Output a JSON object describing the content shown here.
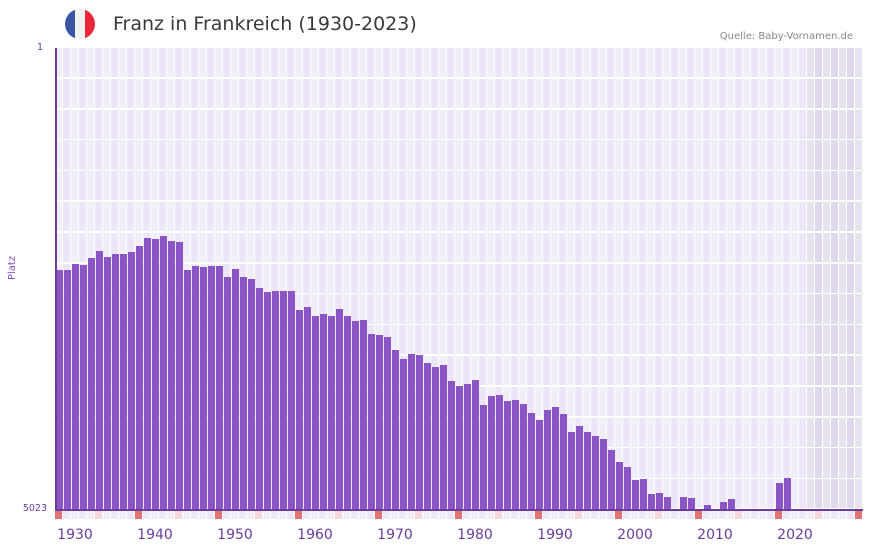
{
  "header": {
    "title": "Franz in Frankreich (1930-2023)",
    "source": "Quelle: Baby-Vornamen.de",
    "flag_colors": [
      "#3a55a4",
      "#f2f2f2",
      "#e8283a"
    ]
  },
  "axis": {
    "y_top_label": "1",
    "y_bottom_label": "5023",
    "y_title": "Platz",
    "x_labels": [
      "1930",
      "1940",
      "1950",
      "1960",
      "1970",
      "1980",
      "1990",
      "2000",
      "2010",
      "2020"
    ]
  },
  "colors": {
    "bar": "#8b55c6",
    "axis": "#6a3d9a",
    "grid_a": "#f2eef9",
    "grid_b": "#ece6f6",
    "future_a": "#e6e2ee",
    "future_b": "#dfd9ea",
    "marker_strong": "#e57373",
    "marker_light": "#f5d7de"
  },
  "chart_data": {
    "type": "bar",
    "title": "Franz in Frankreich (1930-2023)",
    "xlabel": "",
    "ylabel": "Platz",
    "y_axis_inverted": true,
    "ylim": [
      1,
      5023
    ],
    "x_range": [
      1928,
      2028
    ],
    "grid": true,
    "x": [
      1928,
      1929,
      1930,
      1931,
      1932,
      1933,
      1934,
      1935,
      1936,
      1937,
      1938,
      1939,
      1940,
      1941,
      1942,
      1943,
      1944,
      1945,
      1946,
      1947,
      1948,
      1949,
      1950,
      1951,
      1952,
      1953,
      1954,
      1955,
      1956,
      1957,
      1958,
      1959,
      1960,
      1961,
      1962,
      1963,
      1964,
      1965,
      1966,
      1967,
      1968,
      1969,
      1970,
      1971,
      1972,
      1973,
      1974,
      1975,
      1976,
      1977,
      1978,
      1979,
      1980,
      1981,
      1982,
      1983,
      1984,
      1985,
      1986,
      1987,
      1988,
      1989,
      1990,
      1991,
      1992,
      1993,
      1994,
      1995,
      1996,
      1997,
      1998,
      1999,
      2000,
      2001,
      2002,
      2003,
      2004,
      2006,
      2007,
      2009,
      2011,
      2012,
      2018,
      2019
    ],
    "values": [
      2413,
      2413,
      2348,
      2359,
      2283,
      2207,
      2272,
      2240,
      2240,
      2218,
      2153,
      2066,
      2077,
      2044,
      2098,
      2109,
      2413,
      2370,
      2381,
      2370,
      2370,
      2489,
      2402,
      2489,
      2511,
      2609,
      2652,
      2641,
      2641,
      2641,
      2848,
      2815,
      2913,
      2891,
      2913,
      2837,
      2913,
      2967,
      2957,
      3109,
      3120,
      3141,
      3283,
      3381,
      3326,
      3337,
      3424,
      3467,
      3446,
      3620,
      3674,
      3652,
      3609,
      3880,
      3783,
      3772,
      3837,
      3826,
      3870,
      3967,
      4044,
      3935,
      3902,
      3978,
      4174,
      4109,
      4174,
      4217,
      4250,
      4370,
      4500,
      4554,
      4696,
      4685,
      4848,
      4837,
      4880,
      4880,
      4891,
      4967,
      4935,
      4902,
      4728,
      4674
    ],
    "notes": "Lower rank = more popular; bars drawn from bottom (rank 5023) upward. Years 2005, 2008, 2010, 2013-2017 and 2020+ show no bar."
  },
  "markers": {
    "strong_years": [
      1928,
      1938,
      1948,
      1958,
      1968,
      1978,
      1988,
      1998,
      2008,
      2018,
      2028
    ],
    "light_years": [
      1933,
      1943,
      1953,
      1963,
      1973,
      1983,
      1993,
      2003,
      2013,
      2023
    ]
  }
}
